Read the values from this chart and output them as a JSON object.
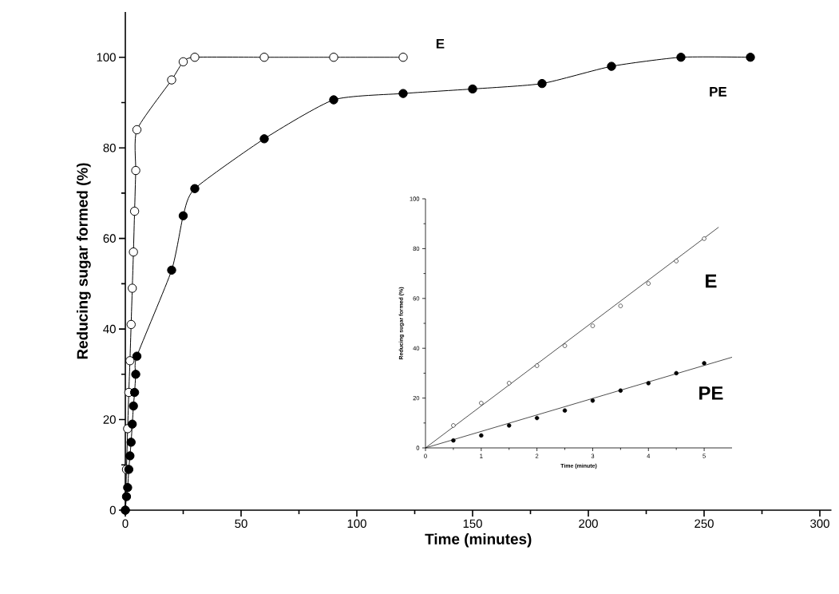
{
  "chart_data": [
    {
      "type": "line",
      "xlabel": "Time (minutes)",
      "ylabel": "Reducing sugar formed (%)",
      "xlim": [
        0,
        305
      ],
      "ylim": [
        0,
        110
      ],
      "xticks": [
        0,
        50,
        100,
        150,
        200,
        250,
        300
      ],
      "yticks": [
        0,
        20,
        40,
        60,
        80,
        100
      ],
      "marker": "circle",
      "line_style": "solid",
      "grid": false,
      "series": [
        {
          "name": "E",
          "color": "#000000",
          "x": [
            0,
            0.5,
            1,
            1.5,
            2,
            2.5,
            3,
            3.5,
            4,
            4.5,
            5,
            20,
            25,
            30,
            60,
            90,
            120
          ],
          "values": [
            0,
            9,
            18,
            26,
            33,
            41,
            49,
            57,
            66,
            75,
            84,
            95,
            99,
            100,
            100,
            100,
            100
          ]
        },
        {
          "name": "PE",
          "color": "#000000",
          "x": [
            0,
            0.5,
            1,
            1.5,
            2,
            2.5,
            3,
            3.5,
            4,
            4.5,
            5,
            20,
            25,
            30,
            60,
            90,
            120,
            150,
            180,
            210,
            240,
            270
          ],
          "values": [
            0,
            3,
            5,
            9,
            12,
            15,
            19,
            23,
            26,
            30,
            34,
            53,
            65,
            71,
            82,
            90.6,
            92,
            93,
            94.2,
            98,
            100,
            100
          ]
        }
      ]
    },
    {
      "type": "scatter",
      "xlabel": "Time (minute)",
      "ylabel": "Reducing sugar formed (%)",
      "xlim": [
        0,
        5.5
      ],
      "ylim": [
        0,
        100
      ],
      "xticks": [
        0,
        1,
        2,
        3,
        4,
        5
      ],
      "yticks": [
        0,
        20,
        40,
        60,
        80,
        100
      ],
      "marker": "circle",
      "grid": false,
      "series": [
        {
          "name": "E",
          "color": "#000000",
          "x": [
            0.5,
            1,
            1.5,
            2,
            2.5,
            3,
            3.5,
            4,
            4.5,
            5
          ],
          "values": [
            9,
            18,
            26,
            33,
            41,
            49,
            57,
            66,
            75,
            84
          ]
        },
        {
          "name": "PE",
          "color": "#000000",
          "x": [
            0.5,
            1,
            1.5,
            2,
            2.5,
            3,
            3.5,
            4,
            4.5,
            5
          ],
          "values": [
            3,
            5,
            9,
            12,
            15,
            19,
            23,
            26,
            30,
            34
          ]
        },
        {
          "type": "line",
          "marker": "none",
          "color": "#000000",
          "x": [
            0,
            5.26
          ],
          "values": [
            0,
            88.6
          ]
        },
        {
          "type": "line",
          "marker": "none",
          "color": "#000000",
          "x": [
            0,
            5.5
          ],
          "values": [
            0,
            36.4
          ]
        }
      ]
    }
  ]
}
